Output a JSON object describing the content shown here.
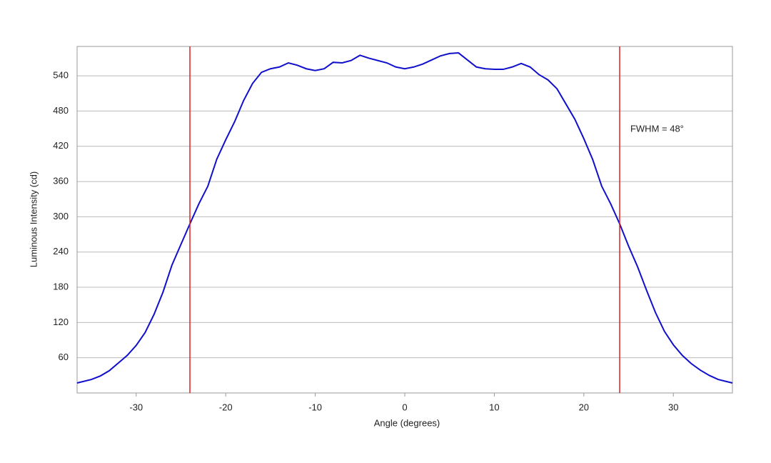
{
  "chart_data": {
    "type": "line",
    "x_label": "Angle (degrees)",
    "y_label": "Luminous Intensity (cd)",
    "annotation": "FWHM = 48°",
    "x": [
      -36.6,
      -35,
      -34,
      -33,
      -32,
      -31,
      -30,
      -29,
      -28,
      -27,
      -26,
      -25,
      -24,
      -23,
      -22,
      -21,
      -20,
      -19,
      -18,
      -17,
      -16,
      -15,
      -14,
      -13,
      -12,
      -11,
      -10,
      -9,
      -8,
      -7,
      -6,
      -5,
      -4,
      -3,
      -2,
      -1,
      0,
      1,
      2,
      3,
      4,
      5,
      6,
      7,
      8,
      9,
      10,
      11,
      12,
      13,
      14,
      15,
      16,
      17,
      18,
      19,
      20,
      21,
      22,
      23,
      24,
      25,
      26,
      27,
      28,
      29,
      30,
      31,
      32,
      33,
      34,
      35,
      36.6
    ],
    "series": [
      {
        "name": "Intensity",
        "color": "#1010cc",
        "values": [
          17,
          23,
          29,
          38,
          51,
          64,
          81,
          103,
          134,
          172,
          218,
          253,
          288,
          322,
          352,
          398,
          431,
          462,
          498,
          527,
          546,
          552,
          555,
          562,
          558,
          552,
          549,
          552,
          563,
          562,
          566,
          575,
          570,
          566,
          562,
          555,
          552,
          555,
          560,
          567,
          574,
          578,
          579,
          567,
          555,
          552,
          551,
          551,
          555,
          561,
          555,
          542,
          533,
          518,
          492,
          466,
          433,
          397,
          352,
          322,
          288,
          250,
          215,
          175,
          137,
          105,
          82,
          64,
          50,
          39,
          30,
          23,
          17
        ]
      }
    ],
    "vlines": [
      -24,
      24
    ],
    "vline_color": "#dd2222",
    "xlim": [
      -36.6,
      36.6
    ],
    "ylim": [
      0,
      590
    ],
    "xticks": [
      -30,
      -20,
      -10,
      0,
      10,
      20,
      30
    ],
    "yticks": [
      60,
      120,
      180,
      240,
      300,
      360,
      420,
      480,
      540
    ],
    "grid": true
  }
}
